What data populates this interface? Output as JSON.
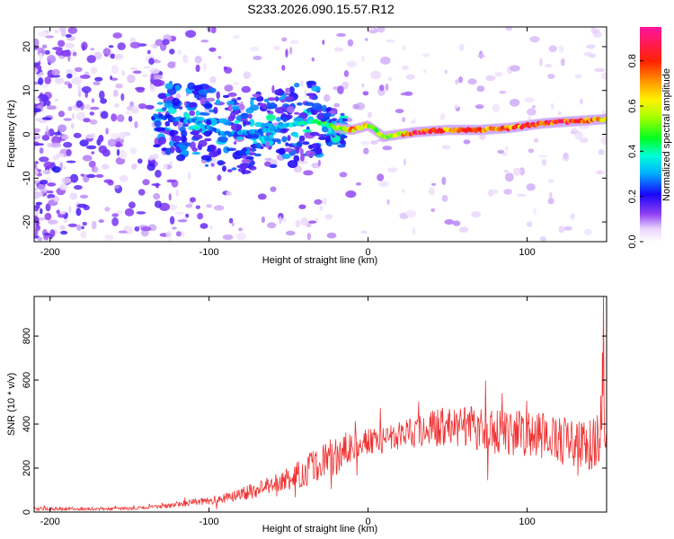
{
  "figure": {
    "title": "S233.2026.090.15.57.R12"
  },
  "chart_data": [
    {
      "type": "heatmap",
      "name": "spectrogram",
      "xlabel": "Height of straight line (km)",
      "ylabel": "Frequency (Hz)",
      "xlim": [
        -210,
        150
      ],
      "ylim": [
        -24.5,
        24.5
      ],
      "xticks": [
        -200,
        -100,
        0,
        100
      ],
      "xtick_labels": [
        "-200",
        "-100",
        "0",
        "100"
      ],
      "yticks": [
        -20,
        -10,
        0,
        10,
        20
      ],
      "ytick_labels": [
        "-20",
        "-10",
        "0",
        "10",
        "20"
      ],
      "colorbar": {
        "label": "Normalized spectral amplitude",
        "range": [
          0,
          0.95
        ],
        "ticks": [
          0.0,
          0.2,
          0.4,
          0.6,
          0.8
        ],
        "tick_labels": [
          "0.0",
          "0.2",
          "0.4",
          "0.6",
          "0.8"
        ]
      },
      "ridge": {
        "x": [
          -130,
          -110,
          -90,
          -70,
          -50,
          -35,
          -20,
          -10,
          0,
          10,
          20,
          30,
          50,
          70,
          90,
          110,
          130,
          150
        ],
        "frequency": [
          4.0,
          3.0,
          0.0,
          0.5,
          2.0,
          3.0,
          1.5,
          1.0,
          2.0,
          -0.5,
          0.0,
          0.5,
          1.0,
          1.0,
          1.5,
          2.5,
          3.0,
          3.5
        ],
        "amplitude": [
          0.25,
          0.3,
          0.3,
          0.3,
          0.35,
          0.4,
          0.55,
          0.75,
          0.65,
          0.55,
          0.65,
          0.9,
          0.75,
          0.8,
          0.8,
          0.85,
          0.9,
          0.7
        ]
      }
    },
    {
      "type": "line",
      "name": "snr",
      "xlabel": "Height of straight line (km)",
      "ylabel": "SNR (10 * v/v)",
      "xlim": [
        -210,
        150
      ],
      "ylim": [
        0,
        980
      ],
      "xticks": [
        -200,
        -100,
        0,
        100
      ],
      "xtick_labels": [
        "-200",
        "-100",
        "0",
        "100"
      ],
      "yticks": [
        0,
        200,
        400,
        600,
        800
      ],
      "ytick_labels": [
        "0",
        "200",
        "400",
        "600",
        "800"
      ],
      "series": [
        {
          "name": "SNR",
          "color": "#ee3333",
          "x": [
            -210,
            -180,
            -150,
            -130,
            -110,
            -90,
            -70,
            -50,
            -35,
            -20,
            -10,
            0,
            10,
            20,
            30,
            40,
            50,
            60,
            70,
            80,
            90,
            100,
            110,
            120,
            130,
            140,
            145,
            148,
            150
          ],
          "mean": [
            15,
            15,
            15,
            25,
            45,
            60,
            100,
            150,
            200,
            260,
            300,
            320,
            330,
            350,
            360,
            380,
            390,
            390,
            380,
            360,
            360,
            350,
            340,
            330,
            320,
            310,
            320,
            600,
            250
          ],
          "spread": [
            12,
            12,
            12,
            15,
            25,
            40,
            60,
            90,
            130,
            160,
            120,
            100,
            110,
            110,
            120,
            140,
            150,
            160,
            160,
            170,
            170,
            180,
            180,
            190,
            190,
            200,
            220,
            380,
            100
          ]
        }
      ]
    }
  ],
  "palette": {
    "line": "#ee3333",
    "frame": "#000000",
    "background": "#ffffff"
  }
}
